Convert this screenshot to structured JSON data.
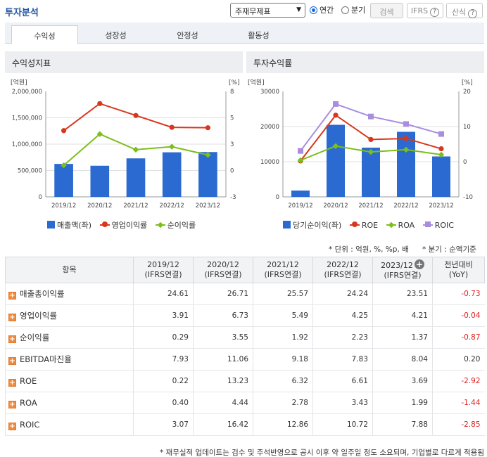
{
  "header": {
    "title": "투자분석",
    "select_value": "주재무제표",
    "radio_annual": "연간",
    "radio_quarter": "분기",
    "search_label": "검색",
    "ifrs_label": "IFRS",
    "calc_label": "산식",
    "help_glyph": "?"
  },
  "tabs": [
    {
      "label": "수익성"
    },
    {
      "label": "성장성"
    },
    {
      "label": "안정성"
    },
    {
      "label": "활동성"
    }
  ],
  "colors": {
    "bar": "#2a6ad1",
    "red": "#d7381d",
    "green": "#7cbf1a",
    "purple": "#a98ee0",
    "neg": "#e02020"
  },
  "panels": {
    "left_title": "수익성지표",
    "right_title": "투자수익률"
  },
  "chart_data": [
    {
      "type": "bar",
      "title": "수익성지표",
      "categories": [
        "2019/12",
        "2020/12",
        "2021/12",
        "2022/12",
        "2023/12"
      ],
      "left_axis": {
        "unit": "[억원]",
        "ticks": [
          "2,000,000",
          "1,500,000",
          "1,000,000",
          "500,000",
          "0"
        ],
        "range": [
          0,
          2000000
        ]
      },
      "right_axis": {
        "unit": "[%]",
        "ticks": [
          "8",
          "5",
          "3",
          "0",
          "-3"
        ],
        "range": [
          -3,
          8
        ]
      },
      "series": [
        {
          "name": "매출액(좌)",
          "type": "bar",
          "axis": "left",
          "values": [
            625000,
            590000,
            730000,
            845000,
            850000
          ]
        },
        {
          "name": "영업이익률",
          "type": "line",
          "axis": "right",
          "values": [
            3.91,
            6.73,
            5.49,
            4.25,
            4.21
          ]
        },
        {
          "name": "순이익률",
          "type": "line",
          "axis": "right",
          "values": [
            0.29,
            3.55,
            1.92,
            2.23,
            1.37
          ]
        }
      ]
    },
    {
      "type": "bar",
      "title": "투자수익률",
      "categories": [
        "2019/12",
        "2020/12",
        "2021/12",
        "2022/12",
        "2023/12"
      ],
      "left_axis": {
        "unit": "[억원]",
        "ticks": [
          "30000",
          "20000",
          "10000",
          "0"
        ],
        "range": [
          0,
          30000
        ]
      },
      "right_axis": {
        "unit": "[%]",
        "ticks": [
          "20",
          "10",
          "0",
          "-10"
        ],
        "range": [
          -10,
          20
        ]
      },
      "series": [
        {
          "name": "당기순이익(좌)",
          "type": "bar",
          "axis": "left",
          "values": [
            1800,
            20500,
            14000,
            18500,
            11500
          ]
        },
        {
          "name": "ROE",
          "type": "line",
          "axis": "right",
          "values": [
            0.22,
            13.23,
            6.32,
            6.61,
            3.69
          ]
        },
        {
          "name": "ROA",
          "type": "line",
          "axis": "right",
          "values": [
            0.4,
            4.44,
            2.78,
            3.43,
            1.99
          ]
        },
        {
          "name": "ROIC",
          "type": "line",
          "axis": "right",
          "values": [
            3.07,
            16.42,
            12.86,
            10.72,
            7.88
          ]
        }
      ]
    }
  ],
  "notes": {
    "unit": "* 단위 : 억원, %, %p, 배",
    "quarter": "* 분기 : 순액기준",
    "footnote": "* 재무실적 업데이트는 검수 및 주석반영으로 공시 이후 약 일주일 정도 소요되며, 기업별로 다르게 적용됨"
  },
  "table": {
    "headers": [
      {
        "l1": "항목",
        "l2": ""
      },
      {
        "l1": "2019/12",
        "l2": "(IFRS연결)"
      },
      {
        "l1": "2020/12",
        "l2": "(IFRS연결)"
      },
      {
        "l1": "2021/12",
        "l2": "(IFRS연결)"
      },
      {
        "l1": "2022/12",
        "l2": "(IFRS연결)"
      },
      {
        "l1": "2023/12",
        "l2": "(IFRS연결)"
      },
      {
        "l1": "전년대비",
        "l2": "(YoY)"
      }
    ],
    "expand_glyph": "+",
    "rows": [
      {
        "label": "매출총이익률",
        "values": [
          "24.61",
          "26.71",
          "25.57",
          "24.24",
          "23.51"
        ],
        "yoy": "-0.73"
      },
      {
        "label": "영업이익률",
        "values": [
          "3.91",
          "6.73",
          "5.49",
          "4.25",
          "4.21"
        ],
        "yoy": "-0.04"
      },
      {
        "label": "순이익률",
        "values": [
          "0.29",
          "3.55",
          "1.92",
          "2.23",
          "1.37"
        ],
        "yoy": "-0.87"
      },
      {
        "label": "EBITDA마진율",
        "values": [
          "7.93",
          "11.06",
          "9.18",
          "7.83",
          "8.04"
        ],
        "yoy": "0.20"
      },
      {
        "label": "ROE",
        "values": [
          "0.22",
          "13.23",
          "6.32",
          "6.61",
          "3.69"
        ],
        "yoy": "-2.92"
      },
      {
        "label": "ROA",
        "values": [
          "0.40",
          "4.44",
          "2.78",
          "3.43",
          "1.99"
        ],
        "yoy": "-1.44"
      },
      {
        "label": "ROIC",
        "values": [
          "3.07",
          "16.42",
          "12.86",
          "10.72",
          "7.88"
        ],
        "yoy": "-2.85"
      }
    ]
  }
}
